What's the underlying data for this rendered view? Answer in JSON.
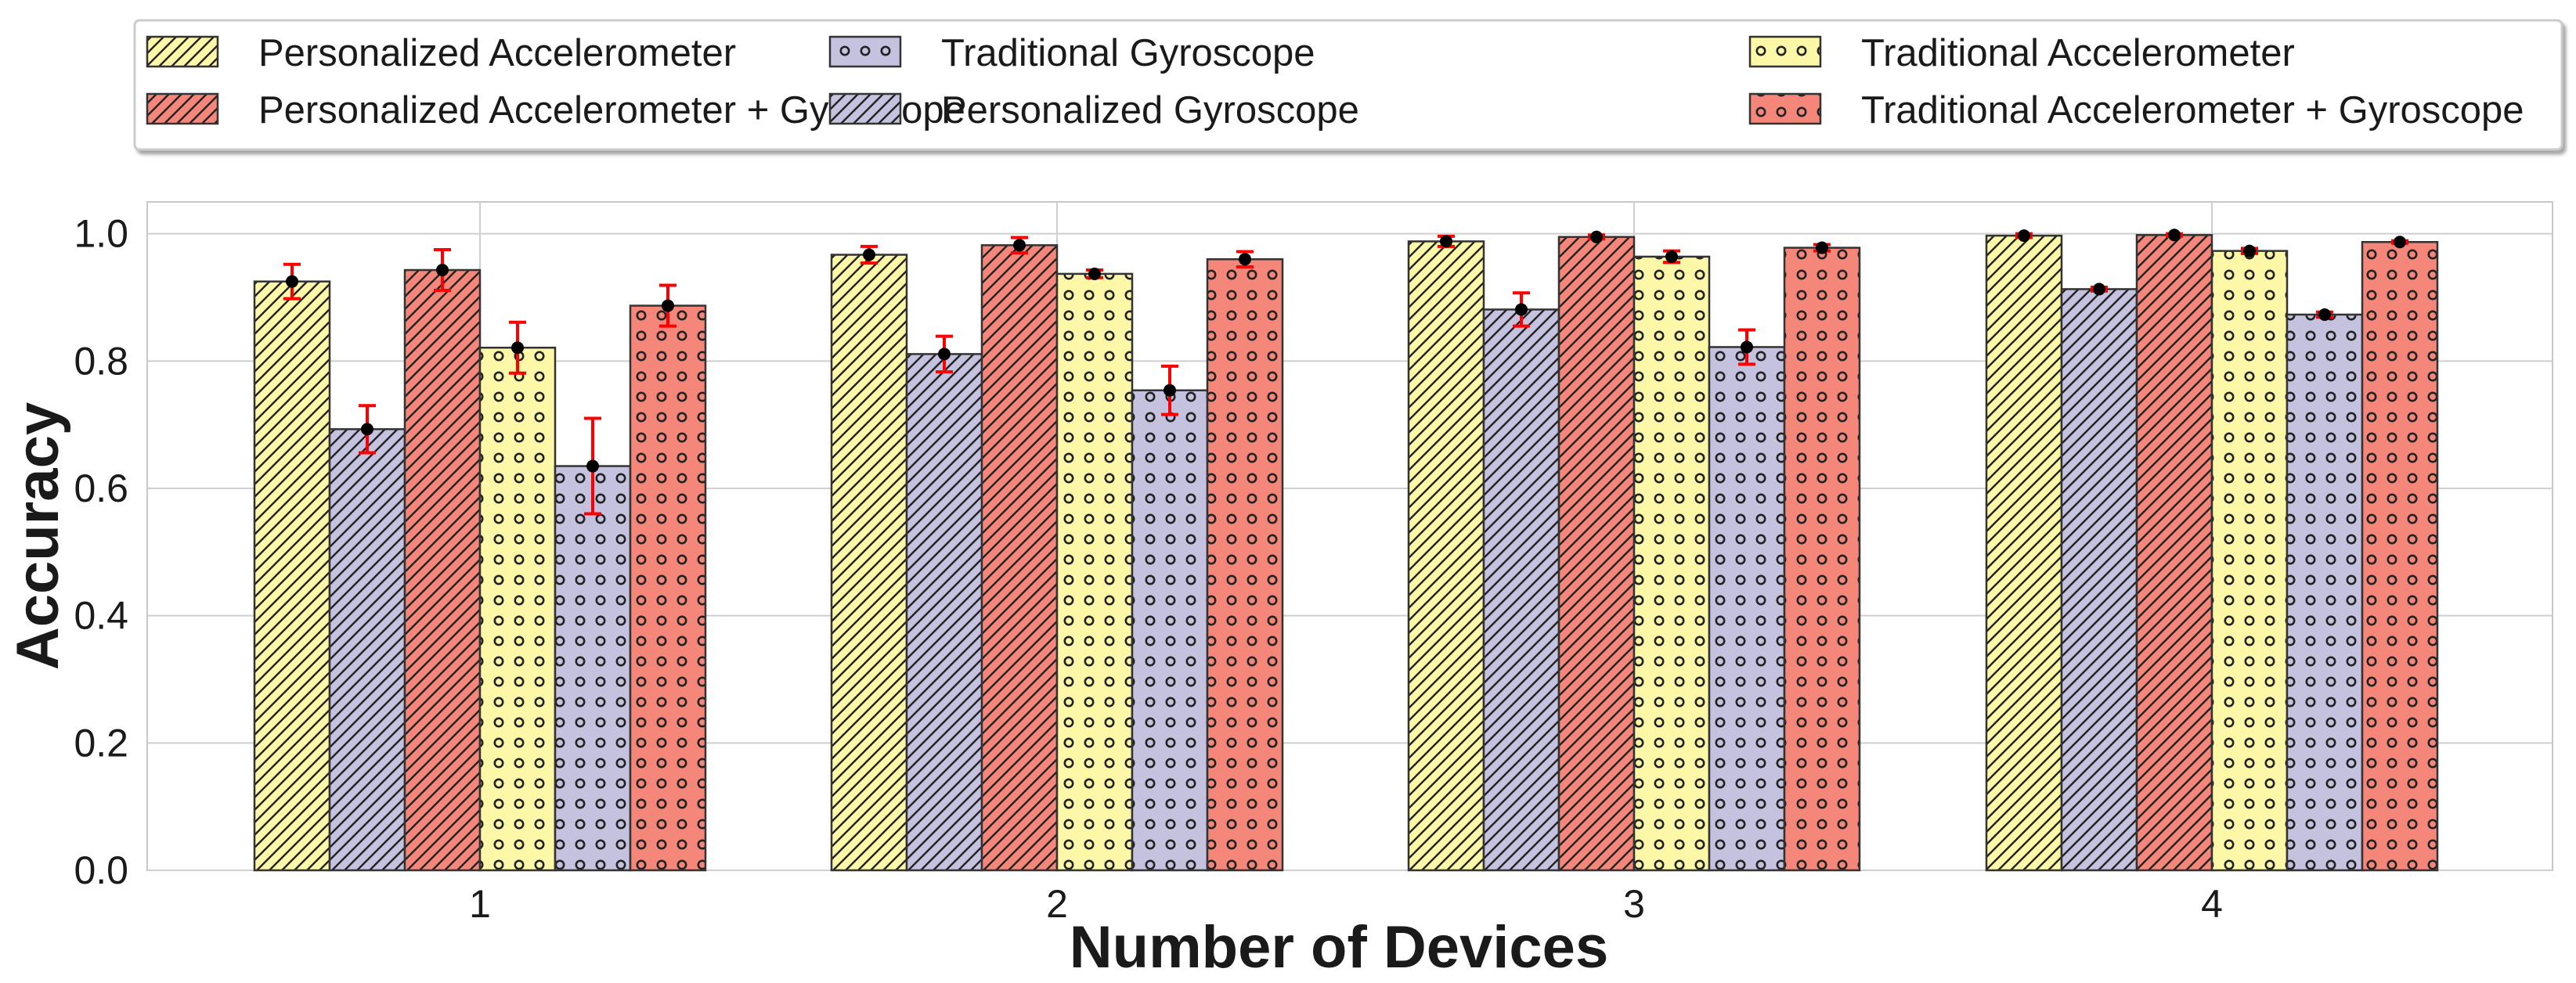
{
  "chart_data": {
    "type": "bar",
    "xlabel": "Number of Devices",
    "ylabel": "Accuracy",
    "categories": [
      "1",
      "2",
      "3",
      "4"
    ],
    "ylim": [
      0,
      1.05
    ],
    "yticks": [
      "0.0",
      "0.2",
      "0.4",
      "0.6",
      "0.8",
      "1.0"
    ],
    "grid": true,
    "legend_position": "top, outside plot",
    "series": [
      {
        "name": "Personalized Accelerometer",
        "color": "#fcf8a8",
        "pattern": "diag",
        "values": [
          0.925,
          0.967,
          0.988,
          0.997
        ],
        "errors": [
          0.027,
          0.013,
          0.008,
          0.003
        ]
      },
      {
        "name": "Personalized Gyroscope",
        "color": "#c5c2e0",
        "pattern": "diag",
        "values": [
          0.693,
          0.811,
          0.881,
          0.913
        ],
        "errors": [
          0.037,
          0.028,
          0.026,
          0.003
        ]
      },
      {
        "name": "Personalized Accelerometer + Gyroscope",
        "color": "#f4877a",
        "pattern": "diag",
        "values": [
          0.943,
          0.982,
          0.995,
          0.998
        ],
        "errors": [
          0.032,
          0.012,
          0.003,
          0.002
        ]
      },
      {
        "name": "Traditional Accelerometer",
        "color": "#fcf8a8",
        "pattern": "dots",
        "values": [
          0.821,
          0.937,
          0.964,
          0.973
        ],
        "errors": [
          0.04,
          0.006,
          0.009,
          0.004
        ]
      },
      {
        "name": "Traditional Gyroscope",
        "color": "#c5c2e0",
        "pattern": "dots",
        "values": [
          0.635,
          0.754,
          0.822,
          0.873
        ],
        "errors": [
          0.075,
          0.038,
          0.027,
          0.004
        ]
      },
      {
        "name": "Traditional Accelerometer + Gyroscope",
        "color": "#f4877a",
        "pattern": "dots",
        "values": [
          0.887,
          0.96,
          0.978,
          0.987
        ],
        "errors": [
          0.032,
          0.012,
          0.005,
          0.002
        ]
      }
    ],
    "legend_order": [
      0,
      2,
      4,
      1,
      3,
      5
    ],
    "errorbar_color": "#ff0000",
    "marker_color": "#000000"
  }
}
